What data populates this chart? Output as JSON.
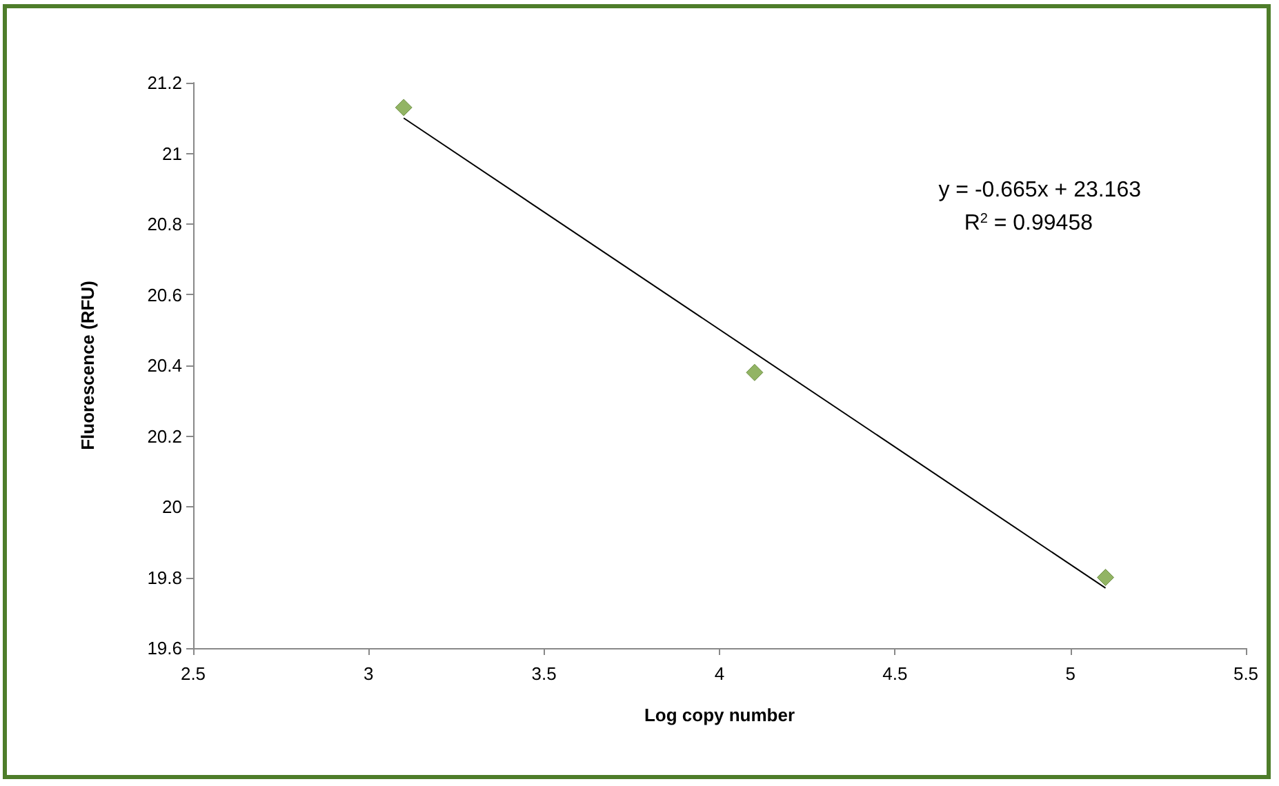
{
  "chart_data": {
    "type": "scatter",
    "xlabel": "Log copy number",
    "ylabel": "Fluorescence (RFU)",
    "series": [
      {
        "type": "scatter",
        "color": "#77a13d",
        "x": [
          3.1,
          4.1,
          5.1
        ],
        "values": [
          21.13,
          20.38,
          19.8
        ],
        "marker": "diamond"
      },
      {
        "type": "line",
        "color": "#000000",
        "x": [
          3.1,
          5.1
        ],
        "values": [
          21.1,
          19.77
        ],
        "marker": "none"
      }
    ],
    "annotations": [
      "y = -0.665x + 23.163",
      "R$^{2}$ = 0.99458"
    ],
    "xlim": [
      2.5,
      5.5
    ],
    "xticks": [
      2.5,
      3,
      3.5,
      4,
      4.5,
      5,
      5.5
    ],
    "ylim": [
      19.6,
      21.2
    ],
    "yticks": [
      19.6,
      19.8,
      20,
      20.2,
      20.4,
      20.6,
      20.8,
      21,
      21.2
    ],
    "grid": false
  }
}
